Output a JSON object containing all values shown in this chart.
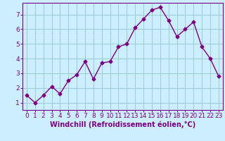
{
  "x": [
    0,
    1,
    2,
    3,
    4,
    5,
    6,
    7,
    8,
    9,
    10,
    11,
    12,
    13,
    14,
    15,
    16,
    17,
    18,
    19,
    20,
    21,
    22,
    23
  ],
  "y": [
    1.5,
    1.0,
    1.5,
    2.1,
    1.6,
    2.5,
    2.9,
    3.8,
    2.6,
    3.7,
    3.8,
    4.8,
    5.0,
    6.1,
    6.7,
    7.3,
    7.5,
    6.6,
    5.5,
    6.0,
    6.5,
    4.8,
    4.0,
    2.8
  ],
  "line_color": "#7B0080",
  "marker": "D",
  "marker_size": 2.5,
  "bg_color": "#cceeff",
  "grid_color": "#99cccc",
  "xlabel": "Windchill (Refroidissement éolien,°C)",
  "xlim": [
    -0.5,
    23.5
  ],
  "ylim": [
    0.5,
    7.8
  ],
  "yticks": [
    1,
    2,
    3,
    4,
    5,
    6,
    7
  ],
  "xticks": [
    0,
    1,
    2,
    3,
    4,
    5,
    6,
    7,
    8,
    9,
    10,
    11,
    12,
    13,
    14,
    15,
    16,
    17,
    18,
    19,
    20,
    21,
    22,
    23
  ],
  "label_color": "#7B0080",
  "xlabel_fontsize": 7,
  "tick_fontsize": 6.5,
  "line_width": 1.0
}
